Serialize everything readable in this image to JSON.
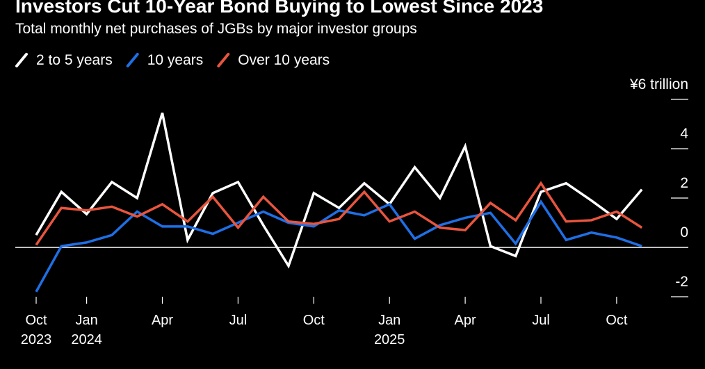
{
  "chart_data": {
    "type": "line",
    "title": "Investors Cut 10-Year Bond Buying to Lowest Since 2023",
    "subtitle": "Total monthly net purchases of JGBs by major investor groups",
    "categories": [
      "Oct 2023",
      null,
      "Jan 2024",
      null,
      null,
      "Apr",
      null,
      null,
      "Jul",
      null,
      null,
      "Oct",
      null,
      null,
      "Jan 2025",
      null,
      null,
      "Apr",
      null,
      null,
      "Jul",
      null,
      null,
      "Oct",
      null
    ],
    "series": [
      {
        "name": "2 to 5 years",
        "color": "#ffffff",
        "values": [
          0.5,
          2.25,
          1.35,
          2.65,
          2.0,
          5.45,
          0.3,
          2.2,
          2.65,
          0.9,
          -0.75,
          2.2,
          1.6,
          2.6,
          1.75,
          3.25,
          2.0,
          4.1,
          0.05,
          -0.35,
          2.25,
          2.6,
          1.9,
          1.15,
          2.35
        ]
      },
      {
        "name": "10 years",
        "color": "#1f6fe5",
        "values": [
          -1.8,
          0.05,
          0.2,
          0.5,
          1.45,
          0.85,
          0.85,
          0.55,
          1.0,
          1.45,
          1.0,
          0.85,
          1.5,
          1.3,
          1.75,
          0.35,
          0.9,
          1.2,
          1.4,
          0.15,
          1.85,
          0.3,
          0.6,
          0.4,
          0.05
        ]
      },
      {
        "name": "Over 10 years",
        "color": "#e8553e",
        "values": [
          0.1,
          1.6,
          1.5,
          1.65,
          1.25,
          1.75,
          1.05,
          2.05,
          0.8,
          2.05,
          1.05,
          0.95,
          1.15,
          2.25,
          1.05,
          1.45,
          0.8,
          0.7,
          1.8,
          1.1,
          2.6,
          1.05,
          1.1,
          1.45,
          0.8
        ]
      }
    ],
    "ylim": [
      -2,
      6
    ],
    "yticks": [
      -2,
      0,
      2,
      4,
      {
        "value": 6,
        "label": "¥6 trillion"
      }
    ]
  }
}
